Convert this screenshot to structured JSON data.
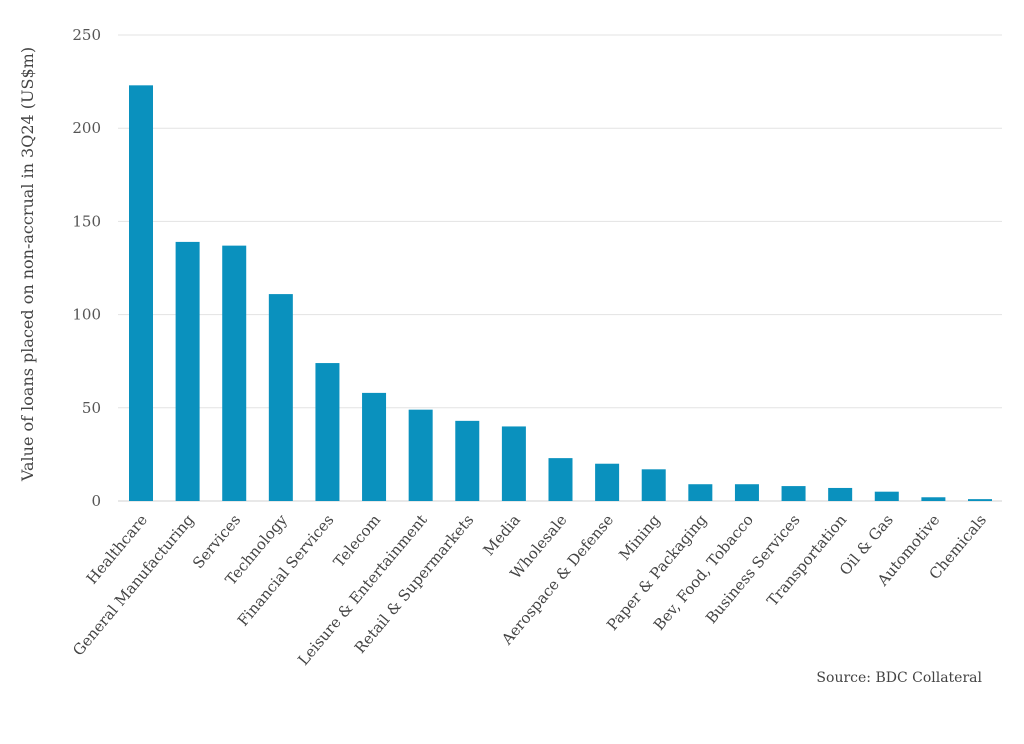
{
  "chart_data": {
    "type": "bar",
    "title": "",
    "xlabel": "",
    "ylabel": "Value of loans placed on non-accrual in 3Q24 (US$m)",
    "ylim": [
      0,
      250
    ],
    "yticks": [
      0,
      50,
      100,
      150,
      200,
      250
    ],
    "grid": true,
    "legend": "none",
    "categories": [
      "Healthcare",
      "General Manufacturing",
      "Services",
      "Technology",
      "Financial Services",
      "Telecom",
      "Leisure & Entertainment",
      "Retail & Supermarkets",
      "Media",
      "Wholesale",
      "Aerospace & Defense",
      "Mining",
      "Paper & Packaging",
      "Bev, Food, Tobacco",
      "Business Services",
      "Transportation",
      "Oil & Gas",
      "Automotive",
      "Chemicals"
    ],
    "values": [
      223,
      139,
      137,
      111,
      74,
      58,
      49,
      43,
      40,
      23,
      20,
      17,
      9,
      9,
      8,
      7,
      5,
      2,
      1
    ],
    "bar_color": "#0a91be",
    "grid_color": "#e3e3e3"
  },
  "source": "Source: BDC Collateral"
}
